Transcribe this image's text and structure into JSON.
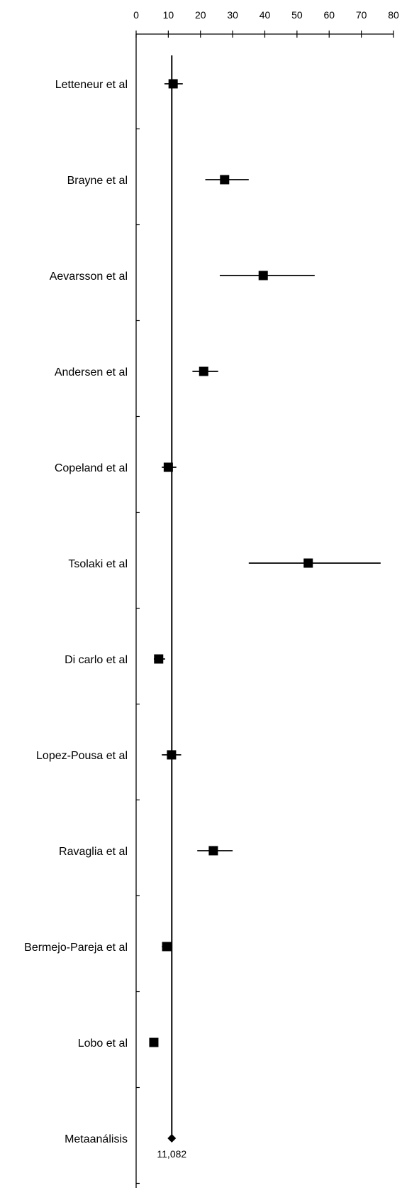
{
  "chart_data": {
    "type": "forest",
    "xlim": [
      0,
      80
    ],
    "x_ticks": [
      0,
      10,
      20,
      30,
      40,
      50,
      60,
      70,
      80
    ],
    "reference_line": 11.082,
    "studies": [
      {
        "label": "Letteneur et al",
        "estimate": 11.5,
        "low": 8.8,
        "high": 14.5
      },
      {
        "label": "Brayne et al",
        "estimate": 27.5,
        "low": 21.5,
        "high": 35
      },
      {
        "label": "Aevarsson et al",
        "estimate": 39.5,
        "low": 26,
        "high": 55.5
      },
      {
        "label": "Andersen et al",
        "estimate": 21,
        "low": 17.5,
        "high": 25.5
      },
      {
        "label": "Copeland et al",
        "estimate": 10,
        "low": 8,
        "high": 12.5
      },
      {
        "label": "Tsolaki et al",
        "estimate": 53.5,
        "low": 35,
        "high": 76
      },
      {
        "label": "Di carlo et al",
        "estimate": 7,
        "low": 5.5,
        "high": 9
      },
      {
        "label": "Lopez-Pousa et al",
        "estimate": 11,
        "low": 8,
        "high": 14
      },
      {
        "label": "Ravaglia et al",
        "estimate": 24,
        "low": 19,
        "high": 30
      },
      {
        "label": "Bermejo-Pareja et al",
        "estimate": 9.5,
        "low": 8,
        "high": 11
      },
      {
        "label": "Lobo et al",
        "estimate": 5.5,
        "low": 5,
        "high": 6.2
      }
    ],
    "meta": {
      "label": "Metaanálisis",
      "estimate": 11.082,
      "value_label": "11,082"
    },
    "colors": {
      "ink": "#000000",
      "background": "#ffffff"
    }
  }
}
